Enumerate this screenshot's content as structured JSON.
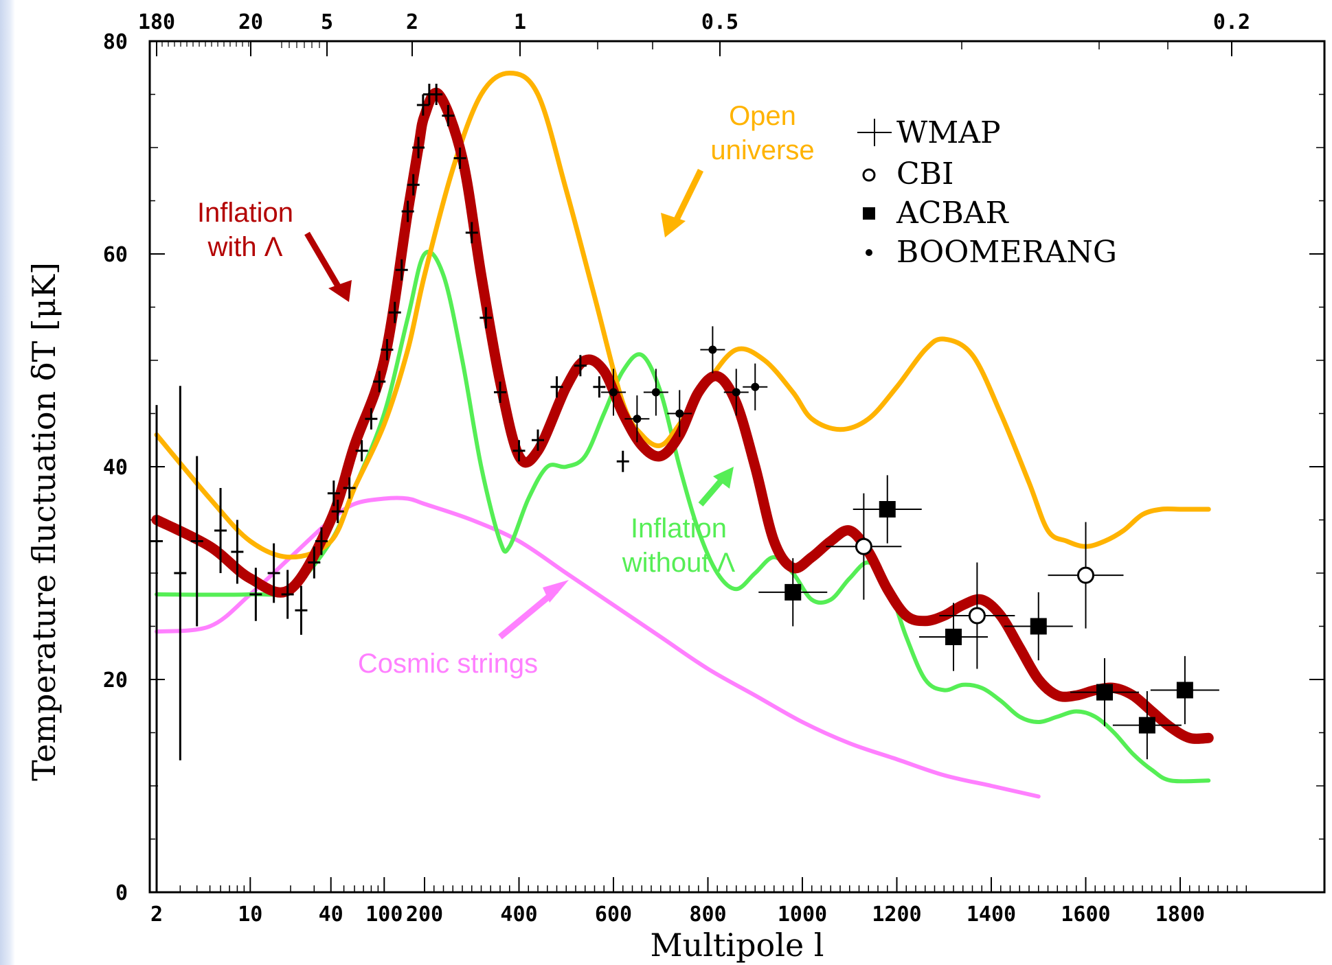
{
  "chart_data": {
    "type": "line",
    "xlabel": "Multipole l",
    "ylabel": "Temperature fluctuation δT  [μK]",
    "ylim": [
      0,
      80
    ],
    "y_ticks": [
      "0",
      "20",
      "40",
      "60",
      "80"
    ],
    "x_ticks_bottom": [
      "2",
      "10",
      "40",
      "100",
      "200",
      "400",
      "600",
      "800",
      "1000",
      "1200",
      "1400",
      "1600",
      "1800"
    ],
    "x_ticks_top": [
      "180",
      "20",
      "5",
      "2",
      "1",
      "0.5",
      "0.2"
    ],
    "x_scale_note": "log below l=200, linear above",
    "legend": {
      "placement": "top-right",
      "entries": [
        {
          "label": "WMAP",
          "marker": "cross"
        },
        {
          "label": "CBI",
          "marker": "open-circle"
        },
        {
          "label": "ACBAR",
          "marker": "filled-square"
        },
        {
          "label": "BOOMERANG",
          "marker": "small-dot"
        }
      ]
    },
    "series": [
      {
        "name": "Inflation with Λ",
        "color": "#b30000",
        "points": [
          [
            2,
            35
          ],
          [
            5,
            32.5
          ],
          [
            10,
            29.5
          ],
          [
            20,
            28.5
          ],
          [
            40,
            35
          ],
          [
            60,
            42
          ],
          [
            100,
            50
          ],
          [
            150,
            64
          ],
          [
            180,
            70
          ],
          [
            200,
            73
          ],
          [
            230,
            75
          ],
          [
            280,
            69
          ],
          [
            320,
            58
          ],
          [
            360,
            48
          ],
          [
            400,
            41
          ],
          [
            440,
            41.5
          ],
          [
            500,
            47.5
          ],
          [
            540,
            50
          ],
          [
            580,
            49
          ],
          [
            620,
            45
          ],
          [
            660,
            42
          ],
          [
            700,
            41
          ],
          [
            740,
            43
          ],
          [
            780,
            47
          ],
          [
            820,
            48.5
          ],
          [
            860,
            46
          ],
          [
            900,
            40
          ],
          [
            940,
            33
          ],
          [
            980,
            30.5
          ],
          [
            1020,
            31.5
          ],
          [
            1060,
            33
          ],
          [
            1100,
            34
          ],
          [
            1140,
            32
          ],
          [
            1180,
            28.5
          ],
          [
            1220,
            26
          ],
          [
            1260,
            25.5
          ],
          [
            1300,
            26
          ],
          [
            1340,
            27
          ],
          [
            1380,
            27.5
          ],
          [
            1420,
            26
          ],
          [
            1460,
            23
          ],
          [
            1500,
            20
          ],
          [
            1540,
            18.5
          ],
          [
            1580,
            18.5
          ],
          [
            1620,
            19
          ],
          [
            1660,
            19.2
          ],
          [
            1700,
            18.5
          ],
          [
            1740,
            17
          ],
          [
            1780,
            15.5
          ],
          [
            1820,
            14.5
          ],
          [
            1860,
            14.5
          ]
        ]
      },
      {
        "name": "Open universe",
        "color": "#ffb300",
        "points": [
          [
            2,
            43
          ],
          [
            5,
            37
          ],
          [
            10,
            33
          ],
          [
            20,
            31.5
          ],
          [
            40,
            33
          ],
          [
            60,
            38
          ],
          [
            100,
            44
          ],
          [
            150,
            51
          ],
          [
            200,
            58
          ],
          [
            260,
            68
          ],
          [
            320,
            75
          ],
          [
            380,
            77
          ],
          [
            440,
            75
          ],
          [
            500,
            66
          ],
          [
            560,
            56
          ],
          [
            620,
            46
          ],
          [
            660,
            43
          ],
          [
            700,
            42
          ],
          [
            740,
            44
          ],
          [
            800,
            48
          ],
          [
            860,
            51
          ],
          [
            920,
            50
          ],
          [
            980,
            47
          ],
          [
            1020,
            44.5
          ],
          [
            1080,
            43.5
          ],
          [
            1140,
            44.5
          ],
          [
            1200,
            47.5
          ],
          [
            1260,
            51
          ],
          [
            1300,
            52
          ],
          [
            1360,
            50.5
          ],
          [
            1420,
            45
          ],
          [
            1480,
            38.5
          ],
          [
            1520,
            34
          ],
          [
            1560,
            33
          ],
          [
            1600,
            32.5
          ],
          [
            1640,
            33
          ],
          [
            1680,
            34
          ],
          [
            1720,
            35.5
          ],
          [
            1760,
            36
          ],
          [
            1800,
            36
          ],
          [
            1860,
            36
          ]
        ]
      },
      {
        "name": "Inflation without Λ",
        "color": "#55ee55",
        "points": [
          [
            2,
            28
          ],
          [
            10,
            28
          ],
          [
            20,
            28.5
          ],
          [
            40,
            33
          ],
          [
            60,
            38
          ],
          [
            100,
            45
          ],
          [
            150,
            54
          ],
          [
            200,
            60
          ],
          [
            240,
            58
          ],
          [
            280,
            50
          ],
          [
            320,
            40
          ],
          [
            360,
            33
          ],
          [
            380,
            32.5
          ],
          [
            420,
            37
          ],
          [
            460,
            40
          ],
          [
            500,
            40
          ],
          [
            540,
            41
          ],
          [
            580,
            45
          ],
          [
            620,
            49
          ],
          [
            660,
            50.5
          ],
          [
            700,
            47
          ],
          [
            740,
            40
          ],
          [
            780,
            34
          ],
          [
            820,
            30
          ],
          [
            860,
            28.5
          ],
          [
            900,
            30
          ],
          [
            940,
            31.5
          ],
          [
            980,
            30
          ],
          [
            1020,
            27.5
          ],
          [
            1060,
            27.5
          ],
          [
            1100,
            29.5
          ],
          [
            1140,
            31
          ],
          [
            1180,
            29
          ],
          [
            1220,
            24
          ],
          [
            1260,
            20
          ],
          [
            1300,
            19
          ],
          [
            1340,
            19.5
          ],
          [
            1380,
            19.2
          ],
          [
            1420,
            18
          ],
          [
            1460,
            16.5
          ],
          [
            1500,
            16
          ],
          [
            1540,
            16.5
          ],
          [
            1580,
            17
          ],
          [
            1620,
            16.5
          ],
          [
            1660,
            15
          ],
          [
            1700,
            13
          ],
          [
            1740,
            11.5
          ],
          [
            1780,
            10.5
          ],
          [
            1860,
            10.5
          ]
        ]
      },
      {
        "name": "Cosmic strings",
        "color": "#ff80ff",
        "points": [
          [
            2,
            24.5
          ],
          [
            5,
            25
          ],
          [
            10,
            28
          ],
          [
            20,
            31.5
          ],
          [
            40,
            35
          ],
          [
            60,
            36.5
          ],
          [
            100,
            37
          ],
          [
            150,
            37
          ],
          [
            200,
            36.5
          ],
          [
            300,
            35
          ],
          [
            400,
            33
          ],
          [
            500,
            30
          ],
          [
            600,
            27
          ],
          [
            700,
            24
          ],
          [
            800,
            21
          ],
          [
            900,
            18.5
          ],
          [
            1000,
            16
          ],
          [
            1100,
            14
          ],
          [
            1200,
            12.5
          ],
          [
            1300,
            11
          ],
          [
            1400,
            10
          ],
          [
            1500,
            9
          ]
        ]
      }
    ],
    "wmap_points": [
      [
        2,
        33
      ],
      [
        3,
        30
      ],
      [
        4,
        33
      ],
      [
        6,
        34
      ],
      [
        8,
        32
      ],
      [
        11,
        28
      ],
      [
        15,
        30
      ],
      [
        19,
        28
      ],
      [
        24,
        26.5
      ],
      [
        30,
        31
      ],
      [
        34,
        33
      ],
      [
        42,
        37.5
      ],
      [
        45,
        35.8
      ],
      [
        55,
        38
      ],
      [
        68,
        41.5
      ],
      [
        80,
        44.5
      ],
      [
        92,
        48
      ],
      [
        105,
        51
      ],
      [
        120,
        54.5
      ],
      [
        135,
        58.5
      ],
      [
        150,
        64
      ],
      [
        165,
        66.5
      ],
      [
        180,
        70
      ],
      [
        195,
        74
      ],
      [
        210,
        75
      ],
      [
        225,
        75
      ],
      [
        250,
        73
      ],
      [
        275,
        69
      ],
      [
        300,
        62
      ],
      [
        330,
        54
      ],
      [
        360,
        47
      ],
      [
        400,
        41.5
      ],
      [
        440,
        42.5
      ],
      [
        480,
        47.5
      ],
      [
        530,
        49.5
      ],
      [
        570,
        47.5
      ],
      [
        620,
        40.5
      ]
    ],
    "boomerang_points": [
      [
        600,
        47
      ],
      [
        650,
        44.5
      ],
      [
        690,
        47
      ],
      [
        740,
        45
      ],
      [
        810,
        51
      ],
      [
        860,
        47
      ],
      [
        900,
        47.5
      ]
    ],
    "cbi_points": [
      [
        1130,
        32.5
      ],
      [
        1370,
        26
      ],
      [
        1600,
        29.8
      ]
    ],
    "acbar_points": [
      [
        980,
        28.2
      ],
      [
        1180,
        36
      ],
      [
        1320,
        24
      ],
      [
        1500,
        25
      ],
      [
        1640,
        18.8
      ],
      [
        1730,
        15.7
      ],
      [
        1810,
        19
      ]
    ]
  },
  "annotations": {
    "open_universe": "Open\nuniverse",
    "inflation_with_lambda": "Inflation\nwith Λ",
    "inflation_without_lambda": "Inflation\nwithout Λ",
    "cosmic_strings": "Cosmic strings"
  },
  "colors": {
    "inflation_with_lambda": "#b30000",
    "open_universe": "#ffb300",
    "inflation_without_lambda": "#55ee55",
    "cosmic_strings": "#ff80ff",
    "data_marks": "#000000"
  }
}
